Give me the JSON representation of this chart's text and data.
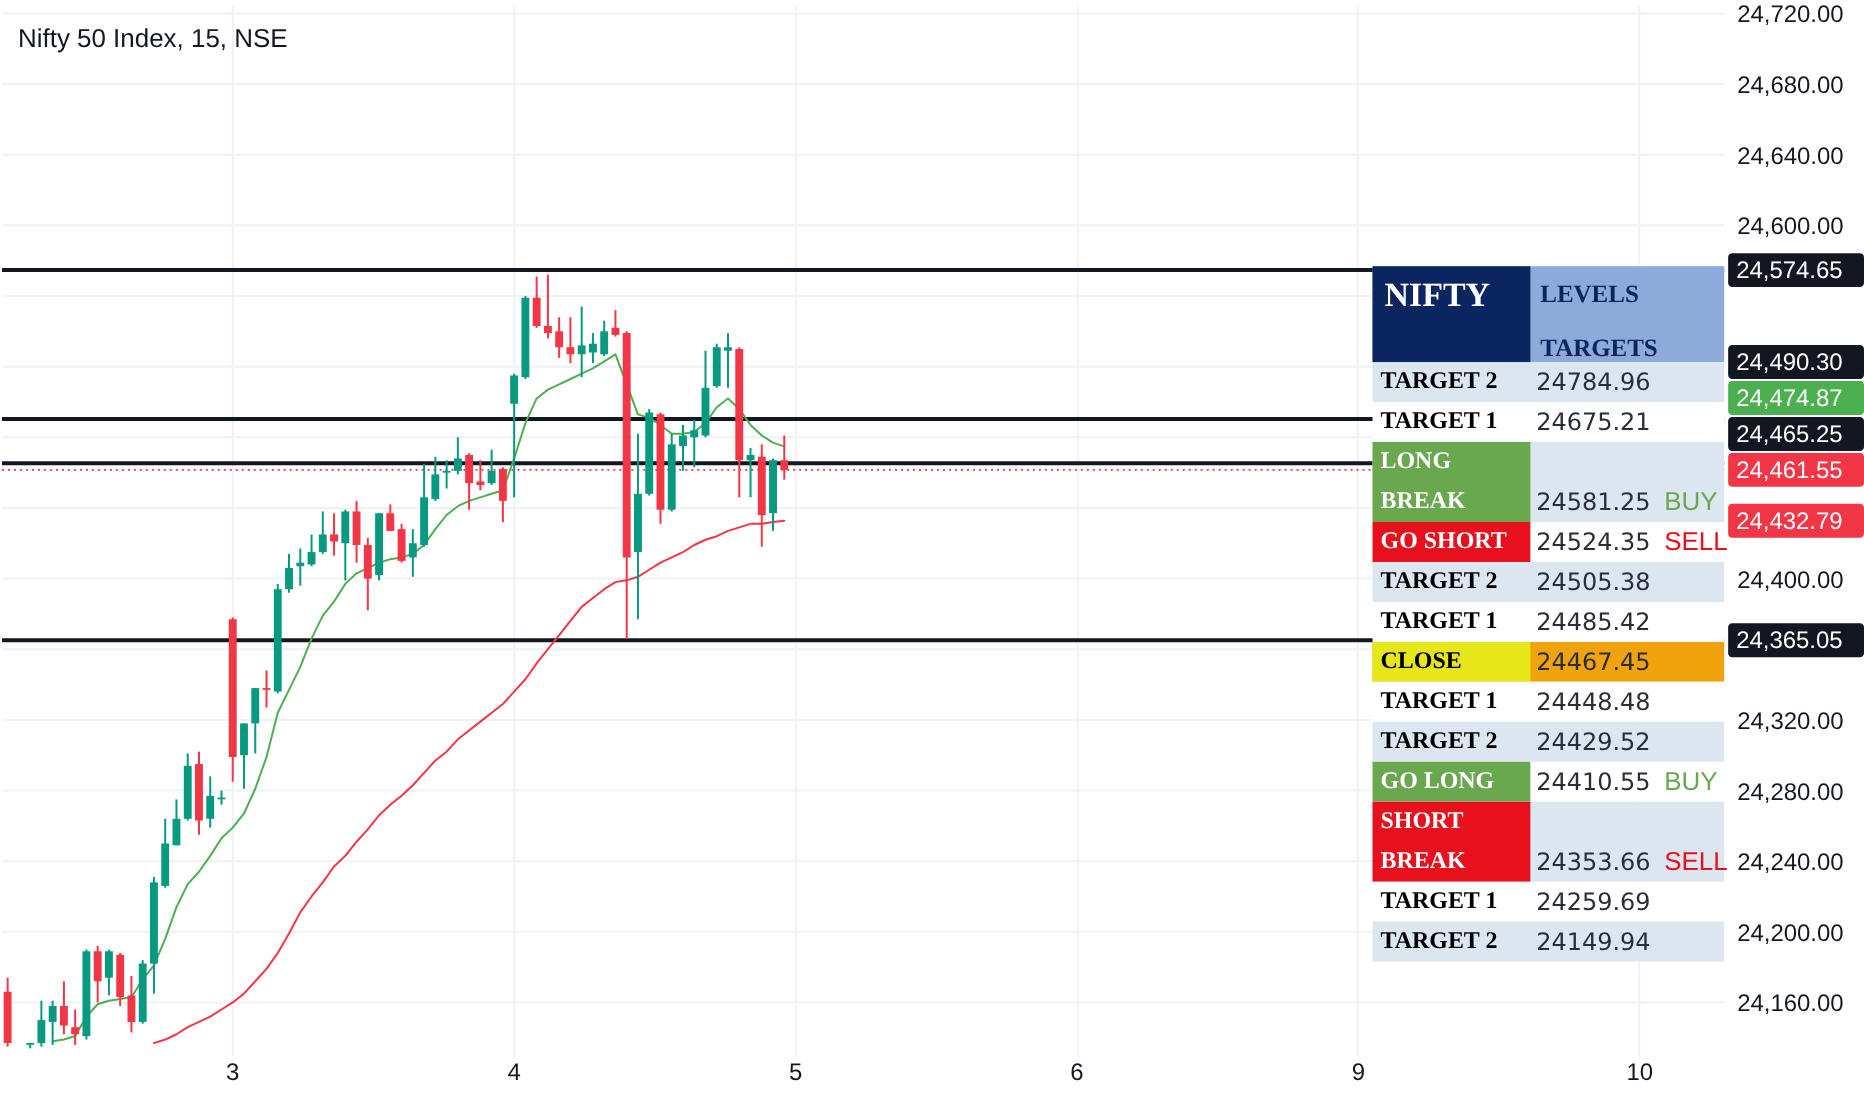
{
  "chart_data": [
    {
      "type": "candlestick",
      "title": "Nifty 50 Index, 15, NSE",
      "categories": [
        null,
        null,
        null,
        null,
        null,
        null,
        null,
        null,
        null,
        null,
        null,
        null,
        null,
        null,
        null,
        null,
        null,
        null,
        null,
        null,
        "3",
        null,
        null,
        null,
        null,
        null,
        null,
        null,
        null,
        null,
        null,
        null,
        null,
        null,
        null,
        null,
        null,
        null,
        null,
        null,
        null,
        null,
        null,
        null,
        null,
        "4",
        null,
        null,
        null,
        null,
        null,
        null,
        null,
        null,
        null,
        null,
        null,
        null,
        null,
        null,
        null,
        null,
        null,
        null,
        null,
        null,
        null,
        null,
        null,
        null,
        "5",
        null,
        null,
        null,
        null,
        null,
        null,
        null,
        null,
        null,
        null,
        null,
        null,
        null,
        null,
        null,
        null,
        null,
        null,
        null,
        null,
        null,
        null,
        null,
        null,
        "6",
        null,
        null,
        null,
        null,
        null,
        null,
        null,
        null,
        null,
        null,
        null,
        null,
        null,
        null,
        null,
        null,
        null,
        null,
        null,
        null,
        null,
        null,
        null,
        null,
        "9",
        null,
        null,
        null,
        null,
        null,
        null,
        null,
        null,
        null,
        null,
        null,
        null,
        null,
        null,
        null,
        null,
        null,
        null,
        null,
        null,
        null,
        null,
        null,
        null,
        "10",
        null,
        null,
        null,
        null,
        null,
        null,
        null
      ],
      "ohlc": [
        [
          24166,
          24174,
          24135,
          24137
        ],
        null,
        [
          24136,
          24137,
          24134,
          24137
        ],
        [
          24137,
          24161,
          24135,
          24150
        ],
        [
          24149,
          24161,
          24136,
          24158
        ],
        [
          24158,
          24172,
          24142,
          24147
        ],
        [
          24146,
          24156,
          24136,
          24142
        ],
        [
          24141,
          24190,
          24139,
          24189
        ],
        [
          24189,
          24192,
          24160,
          24172
        ],
        [
          24174,
          24190,
          24164,
          24189
        ],
        [
          24187,
          24188,
          24158,
          24163
        ],
        [
          24164,
          24175,
          24143,
          24149
        ],
        [
          24149,
          24184,
          24148,
          24182
        ],
        [
          24182,
          24231,
          24165,
          24228
        ],
        [
          24226,
          24264,
          24225,
          24250
        ],
        [
          24249,
          24275,
          24249,
          24264
        ],
        [
          24264,
          24301,
          24263,
          24294
        ],
        [
          24295,
          24302,
          24255,
          24263
        ],
        [
          24264,
          24288,
          24259,
          24277
        ],
        [
          24275,
          24280,
          24272,
          24276
        ],
        [
          24377,
          24378,
          24285,
          24299
        ],
        [
          24300,
          24318,
          24281,
          24318
        ],
        [
          24318,
          24338,
          24301,
          24338
        ],
        [
          24338,
          24348,
          24327,
          24337
        ],
        [
          24336,
          24397,
          24335,
          24394
        ],
        [
          24394,
          24414,
          24392,
          24406
        ],
        [
          24407,
          24417,
          24396,
          24409
        ],
        [
          24408,
          24425,
          24407,
          24415
        ],
        [
          24415,
          24438,
          24414,
          24425
        ],
        [
          24425,
          24437,
          24413,
          24421
        ],
        [
          24420,
          24439,
          24399,
          24438
        ],
        [
          24438,
          24444,
          24409,
          24419
        ],
        [
          24419,
          24423,
          24382,
          24400
        ],
        [
          24402,
          24437,
          24399,
          24437
        ],
        [
          24437,
          24442,
          24427,
          24427
        ],
        [
          24428,
          24431,
          24409,
          24410
        ],
        [
          24412,
          24428,
          24401,
          24420
        ],
        [
          24419,
          24465,
          24418,
          24446
        ],
        [
          24445,
          24469,
          24444,
          24459
        ],
        [
          24460,
          24467,
          24451,
          24461
        ],
        [
          24461,
          24480,
          24459,
          24468
        ],
        [
          24470,
          24471,
          24439,
          24454
        ],
        [
          24455,
          24467,
          24450,
          24453
        ],
        [
          24454,
          24473,
          24453,
          24461
        ],
        [
          24462,
          24463,
          24432,
          24444
        ],
        [
          24499,
          24516,
          24446,
          24515
        ],
        [
          24514,
          24560,
          24513,
          24559
        ],
        [
          24559,
          24571,
          24542,
          24543
        ],
        [
          24543,
          24572,
          24536,
          24539
        ],
        [
          24540,
          24548,
          24525,
          24531
        ],
        [
          24531,
          24548,
          24522,
          24527
        ],
        [
          24527,
          24554,
          24514,
          24532
        ],
        [
          24528,
          24539,
          24522,
          24533
        ],
        [
          24527,
          24546,
          24526,
          24540
        ],
        [
          24542,
          24552,
          24537,
          24538
        ],
        [
          24539,
          24540,
          24366,
          24412
        ],
        [
          24415,
          24482,
          24377,
          24448
        ],
        [
          24448,
          24496,
          24447,
          24494
        ],
        [
          24493,
          24494,
          24431,
          24439
        ],
        [
          24439,
          24482,
          24438,
          24476
        ],
        [
          24475,
          24487,
          24461,
          24481
        ],
        [
          24480,
          24490,
          24463,
          24484
        ],
        [
          24481,
          24529,
          24480,
          24508
        ],
        [
          24509,
          24533,
          24508,
          24531
        ],
        [
          24529,
          24539,
          24508,
          24531
        ],
        [
          24530,
          24531,
          24446,
          24467
        ],
        [
          24467,
          24474,
          24446,
          24470
        ],
        [
          24469,
          24476,
          24418,
          24436
        ],
        [
          24437,
          24468,
          24427,
          24467
        ],
        [
          24467,
          24481,
          24456,
          24461.55
        ],
        null,
        null,
        null,
        null,
        null,
        null,
        null,
        null,
        null,
        null,
        null,
        null,
        null,
        null,
        null,
        null,
        null,
        null,
        null,
        null,
        null,
        null,
        null,
        null,
        null,
        null,
        null,
        null,
        null,
        null,
        null,
        null,
        null,
        null,
        null,
        null,
        null,
        null,
        null,
        null,
        null,
        null,
        null,
        null,
        null,
        null,
        null,
        null,
        null,
        null,
        null,
        null,
        null,
        null,
        null,
        null,
        null,
        null,
        null,
        null,
        null,
        null,
        null,
        null,
        null,
        null,
        null,
        null,
        null,
        null,
        null,
        null,
        null,
        null,
        null,
        null,
        null,
        null,
        null,
        null,
        null,
        null,
        null
      ],
      "colors": [
        "#f23645",
        null,
        "#089981",
        "#089981",
        "#089981",
        "#f23645",
        "#f23645",
        "#089981",
        "#f23645",
        "#089981",
        "#f23645",
        "#f23645",
        "#089981",
        "#089981",
        "#089981",
        "#089981",
        "#089981",
        "#f23645",
        "#089981",
        "#089981",
        "#f23645",
        "#089981",
        "#089981",
        "#f23645",
        "#089981",
        "#089981",
        "#089981",
        "#089981",
        "#089981",
        "#f23645",
        "#089981",
        "#f23645",
        "#f23645",
        "#089981",
        "#f23645",
        "#f23645",
        "#089981",
        "#089981",
        "#089981",
        "#089981",
        "#089981",
        "#f23645",
        "#f23645",
        "#089981",
        "#f23645",
        "#089981",
        "#089981",
        "#f23645",
        "#f23645",
        "#f23645",
        "#f23645",
        "#089981",
        "#089981",
        "#089981",
        "#f23645",
        "#f23645",
        "#089981",
        "#089981",
        "#f23645",
        "#089981",
        "#089981",
        "#089981",
        "#089981",
        "#089981",
        "#089981",
        "#f23645",
        "#089981",
        "#f23645",
        "#089981",
        "#f23645",
        null,
        null,
        null,
        null,
        null,
        null,
        null,
        null,
        null,
        null,
        null,
        null,
        null,
        null,
        null,
        null,
        null,
        null,
        null,
        null,
        null,
        null,
        null,
        null,
        null,
        null,
        null,
        null,
        null,
        null,
        null,
        null,
        null,
        null,
        null,
        null,
        null,
        null,
        null,
        null,
        null,
        null,
        null,
        null,
        null,
        null,
        null,
        null,
        null,
        null,
        null,
        null,
        null,
        null,
        null,
        null,
        null,
        null,
        null,
        null,
        null,
        null,
        null,
        null,
        null,
        null,
        null,
        null,
        null,
        null,
        null,
        null,
        null,
        null,
        null,
        null,
        null,
        null,
        null,
        null,
        null,
        null,
        null
      ],
      "series": [
        {
          "type": "line",
          "color": "#4caf50",
          "values": [
            null,
            null,
            null,
            null,
            24138,
            24139,
            24141,
            24152,
            24159,
            24161,
            24162,
            24163,
            24173,
            24181,
            24196,
            24214,
            24227,
            24234,
            24243,
            24253,
            24259,
            24267,
            24281,
            24299,
            24324,
            24337,
            24350,
            24366,
            24379,
            24387,
            24397,
            24403,
            24406,
            24409,
            24411,
            24412,
            24414,
            24419,
            24428,
            24436,
            24441,
            24444,
            24446,
            24448,
            24450,
            24468,
            24488,
            24502,
            24507,
            24510,
            24513,
            24516,
            24519,
            24523,
            24527,
            null,
            24493,
            24491,
            24487,
            24482,
            24482,
            24483,
            24488,
            24497,
            24502,
            24496,
            24487,
            24481,
            24477,
            24474.87,
            null,
            null,
            null,
            null,
            null,
            null,
            null,
            null,
            null,
            null,
            null,
            null,
            null,
            null,
            null,
            null,
            null,
            null,
            null,
            null,
            null,
            null,
            null,
            null,
            null,
            null,
            null,
            null,
            null,
            null,
            null,
            null,
            null,
            null,
            null,
            null,
            null,
            null,
            null,
            null,
            null,
            null,
            null,
            null,
            null,
            null,
            null,
            null,
            null,
            null,
            null,
            null,
            null,
            null,
            null,
            null,
            null,
            null,
            null,
            null,
            null,
            null,
            null,
            null,
            null,
            null,
            null,
            null,
            null,
            null,
            null,
            null,
            null,
            null,
            null,
            null,
            null,
            null,
            null,
            null,
            null,
            null,
            null
          ]
        },
        {
          "type": "line",
          "color": "#f23645",
          "values": [
            null,
            null,
            null,
            null,
            null,
            null,
            null,
            null,
            null,
            null,
            null,
            null,
            null,
            24137,
            24139,
            24142,
            24146,
            24149,
            24152,
            24156,
            24160,
            24165,
            24172,
            24179,
            24188,
            24199,
            24211,
            24220,
            24228,
            24237,
            24243,
            24251,
            24258,
            24266,
            24272,
            24277,
            24283,
            24290,
            24297,
            24302,
            24309,
            24314,
            24319,
            24324,
            24329,
            24336,
            24343,
            24352,
            24360,
            24368,
            24376,
            24384,
            24389,
            24394,
            24398,
            24399,
            24401,
            24405,
            24409,
            24412,
            24415,
            24419,
            24422,
            24424,
            24427,
            24429,
            24431,
            24431,
            24432,
            24432.79,
            null,
            null,
            null,
            null,
            null,
            null,
            null,
            null,
            null,
            null,
            null,
            null,
            null,
            null,
            null,
            null,
            null,
            null,
            null,
            null,
            null,
            null,
            null,
            null,
            null,
            null,
            null,
            null,
            null,
            null,
            null,
            null,
            null,
            null,
            null,
            null,
            null,
            null,
            null,
            null,
            null,
            null,
            null,
            null,
            null,
            null,
            null,
            null,
            null,
            null,
            null,
            null,
            null,
            null,
            null,
            null,
            null,
            null,
            null,
            null,
            null,
            null,
            null,
            null,
            null,
            null,
            null,
            null,
            null,
            null,
            null,
            null,
            null,
            null,
            null,
            null,
            null,
            null,
            null,
            null,
            null,
            null,
            null
          ]
        }
      ],
      "annotations": [
        "24,474.87",
        "24,432.79"
      ],
      "ylim": [
        24130,
        24725
      ],
      "yticks": [
        {
          "value": 24160,
          "label": "24,160.00"
        },
        {
          "value": 24200,
          "label": "24,200.00"
        },
        {
          "value": 24240,
          "label": "24,240.00"
        },
        {
          "value": 24280,
          "label": "24,280.00"
        },
        {
          "value": 24320,
          "label": "24,320.00"
        },
        {
          "value": 24360,
          "label": null
        },
        {
          "value": 24400,
          "label": "24,400.00"
        },
        {
          "value": 24440,
          "label": null
        },
        {
          "value": 24480,
          "label": null
        },
        {
          "value": 24520,
          "label": null
        },
        {
          "value": 24560,
          "label": null
        },
        {
          "value": 24600,
          "label": "24,600.00"
        },
        {
          "value": 24640,
          "label": "24,640.00"
        },
        {
          "value": 24680,
          "label": "24,680.00"
        },
        {
          "value": 24720,
          "label": "24,720.00"
        }
      ],
      "grid": true,
      "ref_lines": [
        {
          "axis": "y",
          "value": 24574.65,
          "label": "24,574.65",
          "color": "#131722"
        },
        {
          "axis": "y",
          "value": 24490.3,
          "label": "24,490.30",
          "color": "#131722"
        },
        {
          "axis": "y",
          "value": 24465.25,
          "label": "24,465.25",
          "color": "#131722"
        },
        {
          "axis": "y",
          "value": 24365.05,
          "label": "24,365.05",
          "color": "#131722"
        },
        {
          "axis": "y",
          "value": 24461.55,
          "label": "24,461.55",
          "color": "#f23645",
          "line_style": "dotted"
        }
      ]
    },
    {
      "type": "other",
      "title": "NIFTY",
      "subtitle": "LEVELS\nTARGETS",
      "y_categories": [
        "TARGET 2",
        "TARGET 1",
        "LONG\nBREAK",
        "GO SHORT",
        "TARGET 2",
        "TARGET 1",
        "CLOSE",
        "TARGET 1",
        "TARGET 2",
        "GO LONG",
        "SHORT\nBREAK",
        "TARGET 1",
        "TARGET 2"
      ],
      "y2_categories": [
        null,
        null,
        "BUY",
        "SELL",
        null,
        null,
        null,
        null,
        null,
        "BUY",
        "SELL",
        null,
        null
      ],
      "values": [
        24784.96,
        24675.21,
        24581.25,
        24524.35,
        24505.38,
        24485.42,
        24467.45,
        24448.48,
        24429.52,
        24410.55,
        24353.66,
        24259.69,
        24149.94
      ],
      "colors": [
        [
          "#dce6f1",
          "#dce6f1"
        ],
        [
          "#ffffff",
          "#ffffff"
        ],
        [
          "#6aa84f",
          "#dce6f1"
        ],
        [
          "#e8101c",
          "#ffffff"
        ],
        [
          "#dce6f1",
          "#dce6f1"
        ],
        [
          "#ffffff",
          "#ffffff"
        ],
        [
          "#e6e619",
          "#f0a30a"
        ],
        [
          "#ffffff",
          "#ffffff"
        ],
        [
          "#dce6f1",
          "#dce6f1"
        ],
        [
          "#6aa84f",
          "#ffffff"
        ],
        [
          "#e8101c",
          "#dce6f1"
        ],
        [
          "#ffffff",
          "#ffffff"
        ],
        [
          "#dce6f1",
          "#dce6f1"
        ]
      ],
      "data_labels": true
    }
  ]
}
